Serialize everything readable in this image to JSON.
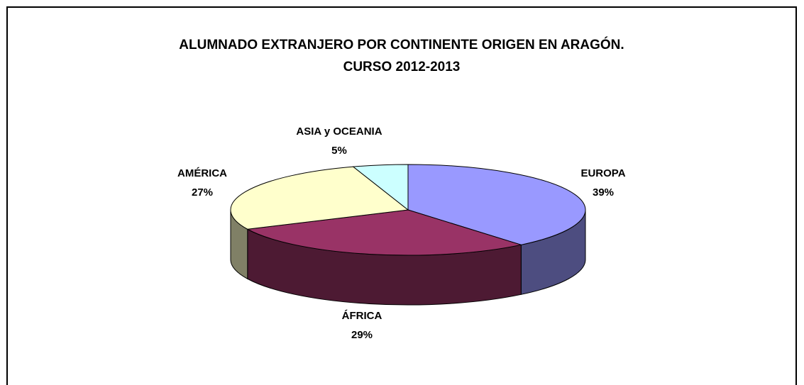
{
  "chart_data": {
    "type": "pie",
    "title": "ALUMNADO EXTRANJERO POR CONTINENTE ORIGEN EN ARAGÓN.",
    "subtitle": "CURSO 2012-2013",
    "categories": [
      "EUROPA",
      "ÁFRICA",
      "AMÉRICA",
      "ASIA y OCEANIA"
    ],
    "values": [
      39,
      29,
      27,
      5
    ],
    "value_labels": [
      "39%",
      "29%",
      "27%",
      "5%"
    ],
    "colors": [
      "#9999ff",
      "#993366",
      "#ffffcc",
      "#ccffff"
    ]
  }
}
